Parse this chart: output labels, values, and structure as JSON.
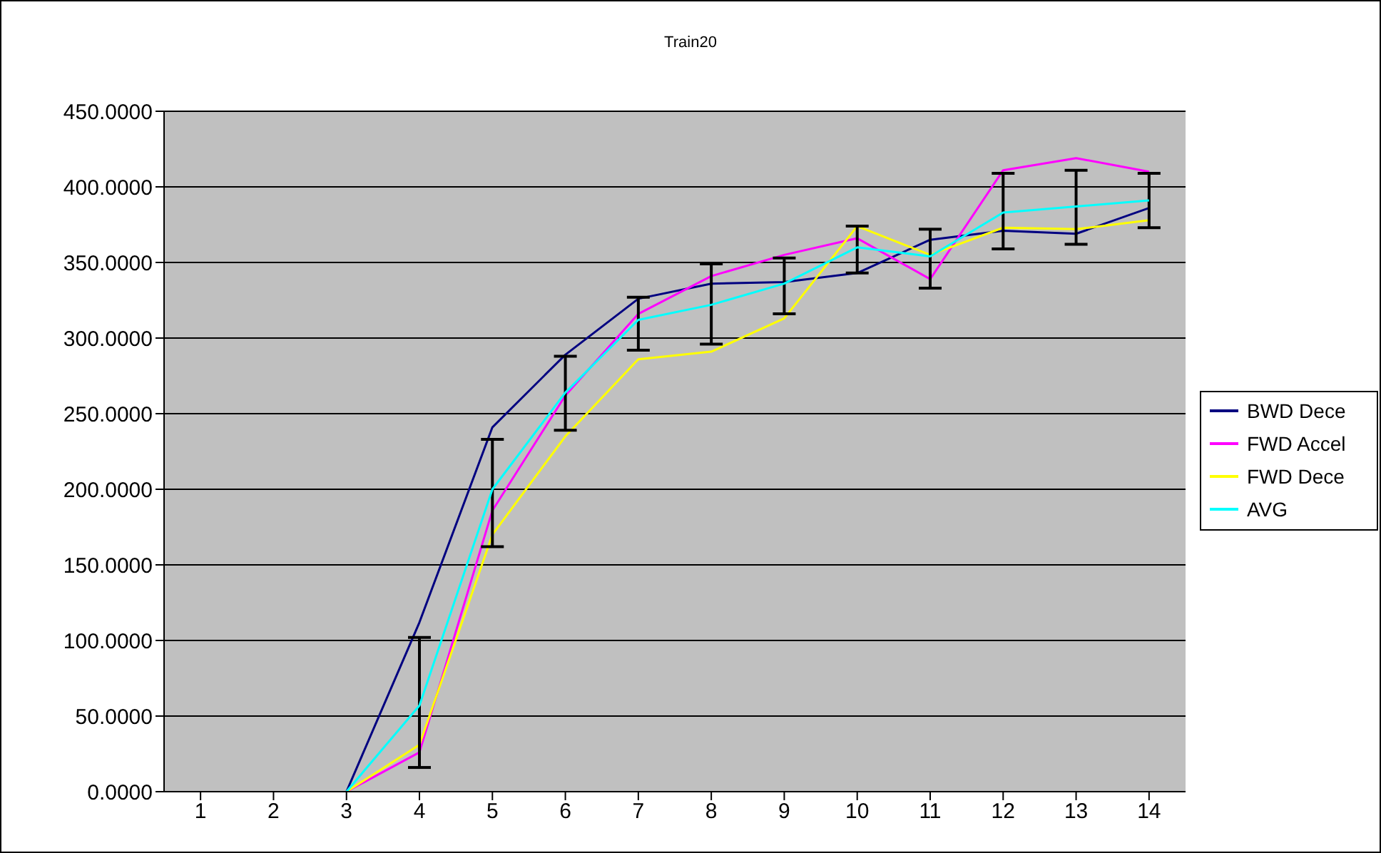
{
  "chart_data": {
    "type": "line",
    "title": "Train20",
    "x": [
      3,
      4,
      5,
      6,
      7,
      8,
      9,
      10,
      11,
      12,
      13,
      14
    ],
    "xlim": [
      0.5,
      14.5
    ],
    "xticks": [
      1,
      2,
      3,
      4,
      5,
      6,
      7,
      8,
      9,
      10,
      11,
      12,
      13,
      14
    ],
    "series": [
      {
        "name": "BWD Dece",
        "color": "#000080",
        "values": [
          0,
          112,
          241,
          289,
          326,
          336,
          337,
          343,
          365,
          371,
          369,
          386
        ]
      },
      {
        "name": "FWD Accel",
        "color": "#ff00ff",
        "values": [
          0,
          26,
          186,
          262,
          316,
          341,
          355,
          366,
          339,
          411,
          419,
          410
        ]
      },
      {
        "name": "FWD Dece",
        "color": "#ffff00",
        "values": [
          0,
          31,
          170,
          235,
          286,
          291,
          313,
          374,
          355,
          373,
          372,
          378
        ]
      },
      {
        "name": "AVG",
        "color": "#00ffff",
        "values": [
          0,
          57,
          200,
          264,
          312,
          322,
          336,
          360,
          354,
          383,
          387,
          391
        ],
        "errors": [
          null,
          [
            16,
            102
          ],
          [
            162,
            233
          ],
          [
            239,
            288
          ],
          [
            292,
            327
          ],
          [
            296,
            349
          ],
          [
            316,
            353
          ],
          [
            343,
            374
          ],
          [
            333,
            372
          ],
          [
            359,
            409
          ],
          [
            362,
            411
          ],
          [
            373,
            409
          ]
        ]
      }
    ],
    "ylim": [
      0,
      450
    ],
    "yticks": [
      {
        "value": 0,
        "label": "0.0000"
      },
      {
        "value": 50,
        "label": "50.0000"
      },
      {
        "value": 100,
        "label": "100.0000"
      },
      {
        "value": 150,
        "label": "150.0000"
      },
      {
        "value": 200,
        "label": "200.0000"
      },
      {
        "value": 250,
        "label": "250.0000"
      },
      {
        "value": 300,
        "label": "300.0000"
      },
      {
        "value": 350,
        "label": "350.0000"
      },
      {
        "value": 400,
        "label": "400.0000"
      },
      {
        "value": 450,
        "label": "450.0000"
      }
    ],
    "grid": "y",
    "legend": "right",
    "marker": "none",
    "line_style": "solid"
  }
}
